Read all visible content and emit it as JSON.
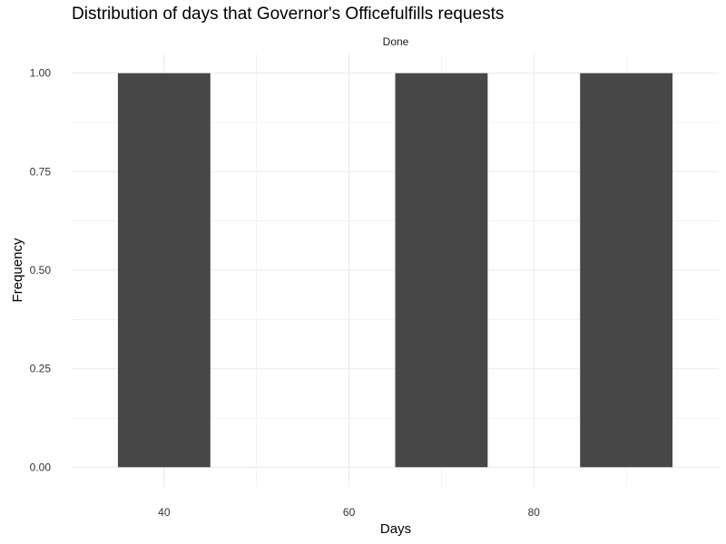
{
  "chart_data": {
    "type": "bar",
    "title": "Distribution of days that Governor's Officefulfills requests",
    "facet_label": "Done",
    "xlabel": "Days",
    "ylabel": "Frequency",
    "xlim": [
      30,
      100
    ],
    "ylim": [
      -0.05,
      1.05
    ],
    "x_ticks": [
      40,
      60,
      80
    ],
    "x_tick_labels": [
      "40",
      "60",
      "80"
    ],
    "y_ticks": [
      0,
      0.25,
      0.5,
      0.75,
      1.0
    ],
    "y_tick_labels": [
      "0.00",
      "0.25",
      "0.50",
      "0.75",
      "1.00"
    ],
    "bin_width": 10,
    "bins": [
      {
        "center": 40,
        "value": 1
      },
      {
        "center": 50,
        "value": 0
      },
      {
        "center": 60,
        "value": 0
      },
      {
        "center": 70,
        "value": 1
      },
      {
        "center": 80,
        "value": 0
      },
      {
        "center": 90,
        "value": 1
      }
    ],
    "bar_color": "#474747",
    "grid": true,
    "grid_color": "#ebebeb",
    "legend": "none"
  }
}
